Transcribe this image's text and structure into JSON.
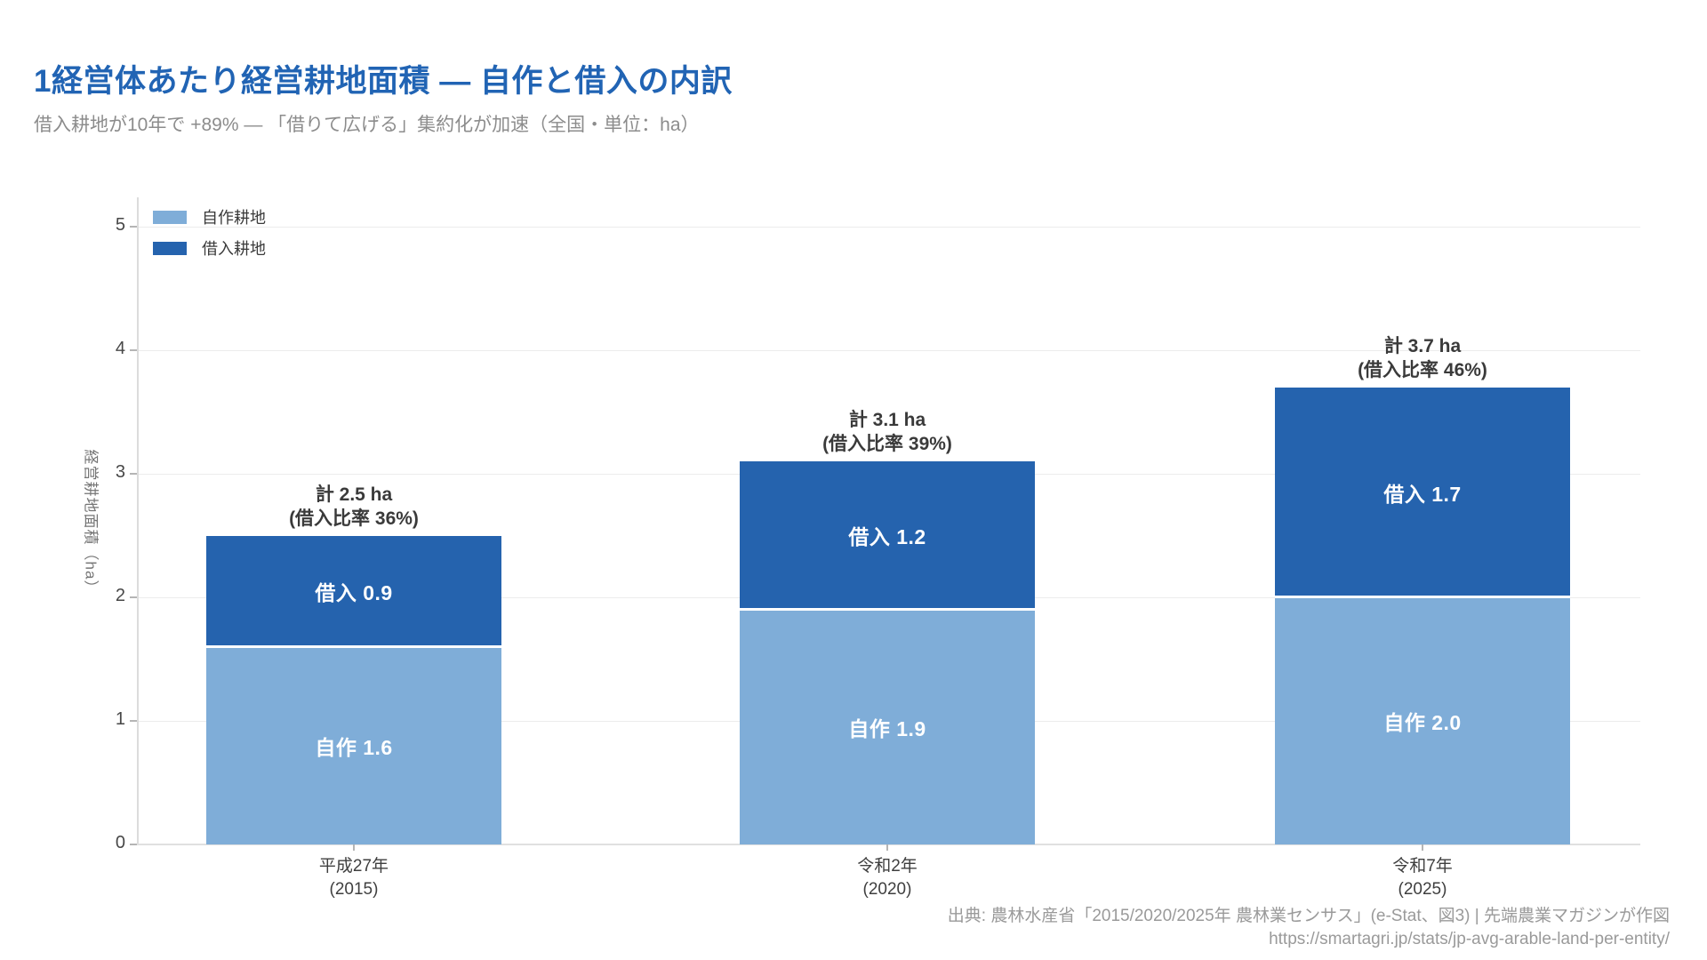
{
  "page": {
    "title": "1経営体あたり経営耕地面積 — 自作と借入の内訳",
    "subtitle": "借入耕地が10年で +89% — 「借りて広げる」集約化が加速（全国・単位：ha）"
  },
  "colors": {
    "title_accent": "#2164b4",
    "own": "#7fadd8",
    "rent": "#2563ae",
    "gridline": "#ececec",
    "axis": "#dcdcdc"
  },
  "legend": {
    "items": [
      {
        "label": "自作耕地",
        "key": "own"
      },
      {
        "label": "借入耕地",
        "key": "rent"
      }
    ]
  },
  "chart_data": {
    "type": "bar",
    "stacked": true,
    "title": "1経営体あたり経営耕地面積 — 自作と借入の内訳",
    "subtitle": "借入耕地が10年で +89% — 「借りて広げる」集約化が加速（全国・単位：ha）",
    "categories": [
      [
        "平成27年",
        "(2015)"
      ],
      [
        "令和2年",
        "(2020)"
      ],
      [
        "令和7年",
        "(2025)"
      ]
    ],
    "series": [
      {
        "name": "自作耕地",
        "values": [
          1.6,
          1.9,
          2.0
        ],
        "color": "#7fadd8"
      },
      {
        "name": "借入耕地",
        "values": [
          0.9,
          1.2,
          1.7
        ],
        "color": "#2563ae"
      }
    ],
    "totals": [
      2.5,
      3.1,
      3.7
    ],
    "bars": [
      {
        "own_label": "自作 1.6",
        "rent_label": "借入 0.9",
        "total_label": "計 2.5 ha",
        "ratio_label": "(借入比率 36%)"
      },
      {
        "own_label": "自作 1.9",
        "rent_label": "借入 1.2",
        "total_label": "計 3.1 ha",
        "ratio_label": "(借入比率 39%)"
      },
      {
        "own_label": "自作 2.0",
        "rent_label": "借入 1.7",
        "total_label": "計 3.7 ha",
        "ratio_label": "(借入比率 46%)"
      }
    ],
    "xlabel": "",
    "ylabel": "経営耕地面積（ha）",
    "yticks": [
      0,
      1,
      2,
      3,
      4,
      5
    ],
    "ylim": [
      0,
      5.2
    ],
    "grid": true,
    "legend_position": "top-left"
  },
  "footer": {
    "source_line1": "出典: 農林水産省「2015/2020/2025年 農林業センサス」(e-Stat、図3) | 先端農業マガジンが作図",
    "source_line2": "https://smartagri.jp/stats/jp-avg-arable-land-per-entity/"
  }
}
